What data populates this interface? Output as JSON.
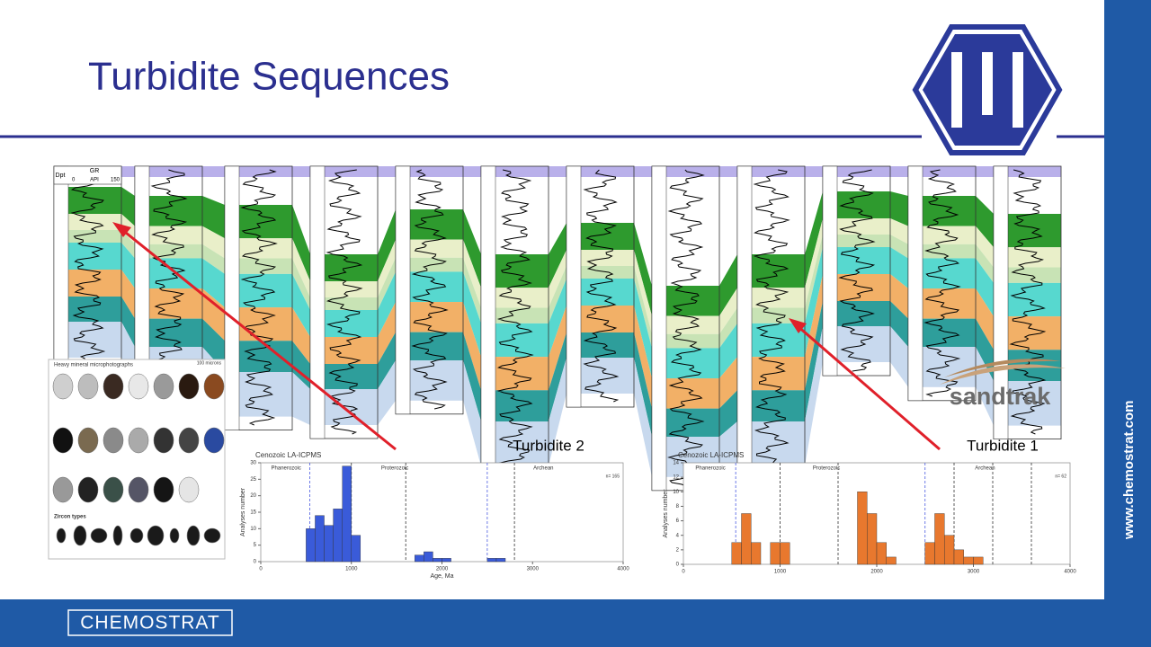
{
  "title": "Turbidite Sequences",
  "correlation": {
    "header": {
      "depth": "Dpt",
      "log": "GR",
      "min": "0",
      "unit": "API",
      "max": "150"
    }
  },
  "micrographs": {
    "title": "Heavy mineral microphotographs",
    "scale": "100 microns",
    "zircon_title": "Zircon types"
  },
  "logo_text": "sandtrak",
  "labels": [
    "Turbidite  2",
    "Turbidite 1"
  ],
  "charts": [
    {
      "type": "histogram",
      "title": "Cenozoic LA-ICPMS",
      "y_label": "Analyses number",
      "x_label": "Age, Ma",
      "n_label": "n= 165",
      "eons": [
        "Phanerozoic",
        "Proterozoic",
        "Archean"
      ],
      "bins": [
        500,
        600,
        700,
        800,
        900,
        1000,
        1100,
        1200,
        1300,
        1400,
        1500,
        1600,
        1700,
        1800,
        1900,
        2000,
        2100,
        2200,
        2300,
        2400,
        2500,
        2600,
        2700,
        2800
      ],
      "values": [
        10,
        14,
        11,
        16,
        29,
        8,
        0,
        0,
        0,
        0,
        0,
        0,
        2,
        3,
        1,
        1,
        0,
        0,
        0,
        0,
        1,
        1,
        0
      ],
      "color": "#3a5bd9",
      "boundaries": [
        541,
        1000,
        1600,
        2500,
        2800
      ],
      "xlim": [
        0,
        4000
      ],
      "xticks": [
        0,
        1000,
        2000,
        3000,
        4000
      ],
      "ylim": [
        0,
        30
      ],
      "yticks": [
        0,
        5,
        10,
        15,
        20,
        25,
        30
      ]
    },
    {
      "type": "histogram",
      "title": "Cenozoic LA-ICPMS",
      "y_label": "Analyses number",
      "n_label": "n= 62",
      "eons": [
        "Phanerozoic",
        "Proterozoic",
        "Archean"
      ],
      "bins": [
        500,
        600,
        700,
        800,
        900,
        1000,
        1100,
        1200,
        1300,
        1400,
        1500,
        1600,
        1700,
        1800,
        1900,
        2000,
        2100,
        2200,
        2300,
        2400,
        2500,
        2600,
        2700,
        2800,
        2900,
        3000,
        3100
      ],
      "values": [
        3,
        7,
        3,
        0,
        3,
        3,
        0,
        0,
        0,
        0,
        0,
        0,
        0,
        10,
        7,
        3,
        1,
        0,
        0,
        0,
        3,
        7,
        4,
        2,
        1,
        1
      ],
      "color": "#e8782e",
      "boundaries": [
        541,
        1000,
        1600,
        2500,
        2800,
        3200,
        3600
      ],
      "xlim": [
        0,
        4000
      ],
      "xticks": [
        0,
        1000,
        2000,
        3000,
        4000
      ],
      "ylim": [
        0,
        14
      ],
      "yticks": [
        0,
        2,
        4,
        6,
        8,
        10,
        12,
        14
      ]
    }
  ],
  "footer": {
    "brand": "CHEMOSTRAT",
    "website": "www.chemostrat.com"
  }
}
